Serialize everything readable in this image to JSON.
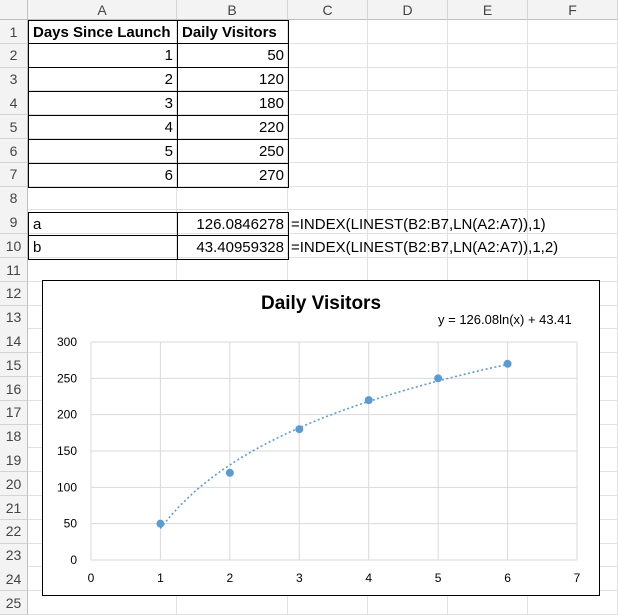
{
  "columns": [
    "A",
    "B",
    "C",
    "D",
    "E",
    "F"
  ],
  "rows": [
    "1",
    "2",
    "3",
    "4",
    "5",
    "6",
    "7",
    "8",
    "9",
    "10",
    "11",
    "12",
    "13",
    "14",
    "15",
    "16",
    "17",
    "18",
    "19",
    "20",
    "21",
    "22",
    "23",
    "24",
    "25"
  ],
  "table": {
    "header_a": "Days Since Launch",
    "header_b": "Daily Visitors",
    "data": [
      {
        "a": "1",
        "b": "50"
      },
      {
        "a": "2",
        "b": "120"
      },
      {
        "a": "3",
        "b": "180"
      },
      {
        "a": "4",
        "b": "220"
      },
      {
        "a": "5",
        "b": "250"
      },
      {
        "a": "6",
        "b": "270"
      }
    ]
  },
  "coefficients": {
    "a_label": "a",
    "a_value": "126.0846278",
    "a_formula": "=INDEX(LINEST(B2:B7,LN(A2:A7)),1)",
    "b_label": "b",
    "b_value": "43.40959328",
    "b_formula": "=INDEX(LINEST(B2:B7,LN(A2:A7)),1,2)"
  },
  "chart_data": {
    "type": "scatter",
    "title": "Daily Visitors",
    "trendline_label": "y = 126.08ln(x) + 43.41",
    "trendline": {
      "kind": "logarithmic",
      "a": 126.08,
      "b": 43.41
    },
    "x": [
      1,
      2,
      3,
      4,
      5,
      6
    ],
    "y": [
      50,
      120,
      180,
      220,
      250,
      270
    ],
    "xlim": [
      0,
      7
    ],
    "ylim": [
      0,
      300
    ],
    "xticks": [
      "0",
      "1",
      "2",
      "3",
      "4",
      "5",
      "6",
      "7"
    ],
    "yticks": [
      "0",
      "50",
      "100",
      "150",
      "200",
      "250",
      "300"
    ],
    "grid": true,
    "marker_color": "#5b9bd5",
    "trend_color": "#5b9bd5"
  }
}
